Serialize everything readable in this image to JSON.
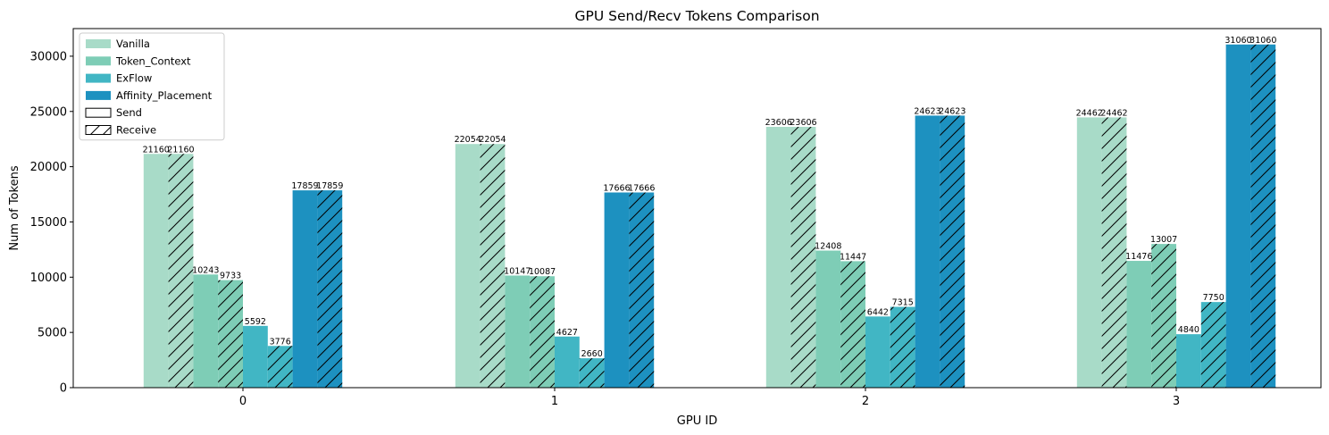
{
  "chart_data": {
    "type": "bar",
    "title": "GPU Send/Recv Tokens Comparison",
    "xlabel": "GPU ID",
    "ylabel": "Num of Tokens",
    "categories": [
      "0",
      "1",
      "2",
      "3"
    ],
    "ylim": [
      0,
      32500
    ],
    "yticks": [
      0,
      5000,
      10000,
      15000,
      20000,
      25000,
      30000
    ],
    "grid": false,
    "legend_position": "top-left",
    "series": [
      {
        "name": "Vanilla",
        "color": "#a8dbc8",
        "send": [
          21160,
          22054,
          23606,
          24462
        ],
        "receive": [
          21160,
          22054,
          23606,
          24462
        ]
      },
      {
        "name": "Token_Context",
        "color": "#7ecdb6",
        "send": [
          10243,
          10147,
          12408,
          11476
        ],
        "receive": [
          9733,
          10087,
          11447,
          13007
        ]
      },
      {
        "name": "ExFlow",
        "color": "#41b6c4",
        "send": [
          5592,
          4627,
          6442,
          4840
        ],
        "receive": [
          3776,
          2660,
          7315,
          7750
        ]
      },
      {
        "name": "Affinity_Placement",
        "color": "#1d91c0",
        "send": [
          17859,
          17666,
          24623,
          31060
        ],
        "receive": [
          17859,
          17666,
          24623,
          31060
        ]
      }
    ],
    "pattern_legend": [
      "Send",
      "Receive"
    ]
  }
}
